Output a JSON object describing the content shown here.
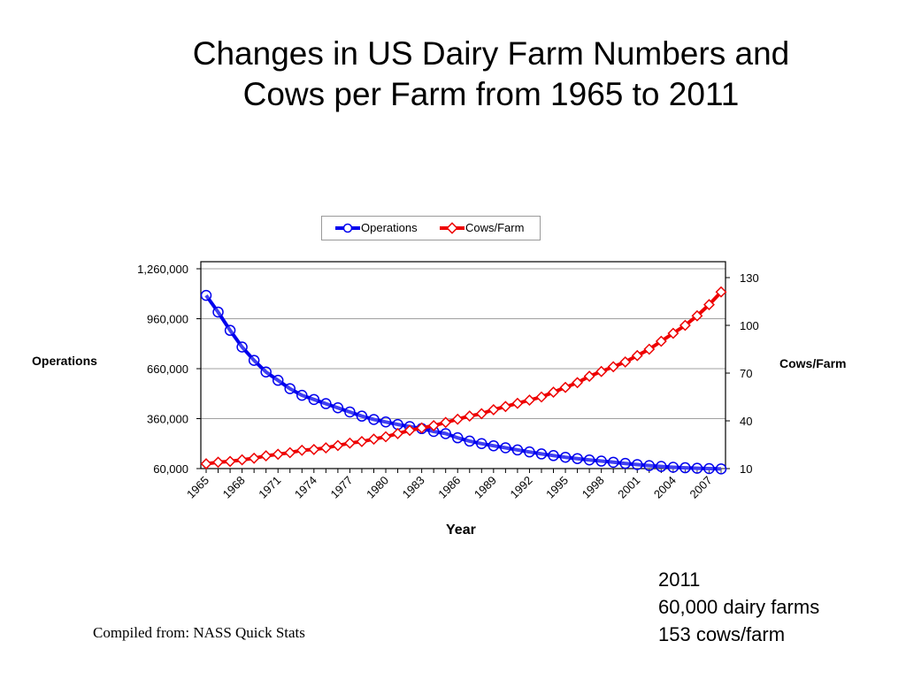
{
  "chart_data": {
    "type": "line",
    "title_lines": [
      "Changes in US Dairy Farm Numbers and",
      "Cows per Farm from 1965 to 2011"
    ],
    "xlabel": "Year",
    "ylabel_left": "Operations",
    "ylabel_right": "Cows/Farm",
    "legend_position": "top-center",
    "grid": true,
    "x": [
      1965,
      1966,
      1967,
      1968,
      1969,
      1970,
      1971,
      1972,
      1973,
      1974,
      1975,
      1976,
      1977,
      1978,
      1979,
      1980,
      1981,
      1982,
      1983,
      1984,
      1985,
      1986,
      1987,
      1988,
      1989,
      1990,
      1991,
      1992,
      1993,
      1994,
      1995,
      1996,
      1997,
      1998,
      1999,
      2000,
      2001,
      2002,
      2003,
      2004,
      2005,
      2006,
      2007,
      2008
    ],
    "x_tick_labels": [
      "1965",
      "1968",
      "1971",
      "1974",
      "1977",
      "1980",
      "1983",
      "1986",
      "1989",
      "1992",
      "1995",
      "1998",
      "2001",
      "2004",
      "2007"
    ],
    "left_axis": {
      "range": [
        60000,
        1260000
      ],
      "ticks": [
        60000,
        360000,
        660000,
        960000,
        1260000
      ],
      "tick_labels": [
        "60,000",
        "360,000",
        "660,000",
        "960,000",
        "1,260,000"
      ]
    },
    "right_axis": {
      "range": [
        10,
        140
      ],
      "ticks": [
        10,
        40,
        70,
        100,
        130
      ],
      "tick_labels": [
        "10",
        "40",
        "70",
        "100",
        "130"
      ]
    },
    "series": [
      {
        "name": "Operations",
        "axis": "left",
        "color": "#0000ee",
        "marker": "circle",
        "values": [
          1100000,
          1000000,
          890000,
          790000,
          710000,
          640000,
          590000,
          540000,
          500000,
          475000,
          450000,
          425000,
          400000,
          375000,
          355000,
          340000,
          325000,
          312000,
          300000,
          283000,
          270000,
          245000,
          225000,
          210000,
          197000,
          185000,
          172000,
          160000,
          148000,
          138000,
          128000,
          120000,
          112000,
          105000,
          98000,
          91000,
          84000,
          78000,
          73000,
          68000,
          65000,
          62000,
          60000,
          58000
        ]
      },
      {
        "name": "Cows/Farm",
        "axis": "right",
        "color": "#ee0000",
        "marker": "diamond",
        "values": [
          13,
          14,
          14.5,
          15.5,
          16.5,
          18,
          19,
          20,
          21.5,
          22,
          23,
          24.5,
          26,
          27,
          28.5,
          30,
          32,
          34,
          35.5,
          37,
          39,
          41,
          43,
          44.5,
          47,
          49,
          51,
          53,
          55,
          58,
          61,
          64,
          68,
          71,
          74,
          77,
          81,
          85,
          90,
          95,
          100,
          106,
          113,
          121
        ]
      }
    ]
  },
  "note": {
    "year": "2011",
    "farms": "60,000 dairy farms",
    "cows": "153 cows/farm"
  },
  "source": "Compiled from:  NASS Quick Stats"
}
